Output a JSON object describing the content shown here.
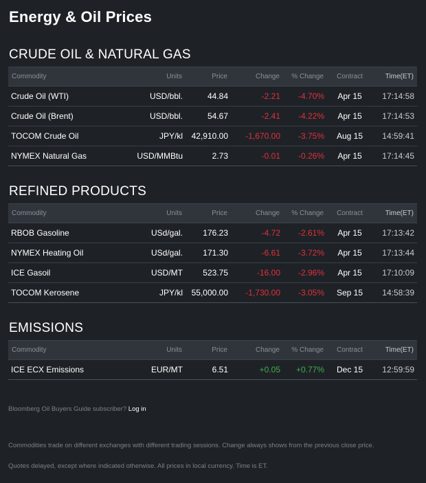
{
  "page": {
    "title": "Energy & Oil Prices"
  },
  "columns": [
    "Commodity",
    "Units",
    "Price",
    "Change",
    "% Change",
    "Contract",
    "Time(ET)"
  ],
  "colors": {
    "negative": "#e0303a",
    "positive": "#3fae49",
    "background": "#1e2227",
    "header_bg": "#30353c"
  },
  "sections": [
    {
      "title": "CRUDE OIL & NATURAL GAS",
      "rows": [
        {
          "name": "Crude Oil (WTI)",
          "units": "USD/bbl.",
          "price": "44.84",
          "change": "-2.21",
          "pct": "-4.70%",
          "contract": "Apr 15",
          "time": "17:14:58"
        },
        {
          "name": "Crude Oil (Brent)",
          "units": "USD/bbl.",
          "price": "54.67",
          "change": "-2.41",
          "pct": "-4.22%",
          "contract": "Apr 15",
          "time": "17:14:53"
        },
        {
          "name": "TOCOM Crude Oil",
          "units": "JPY/kl",
          "price": "42,910.00",
          "change": "-1,670.00",
          "pct": "-3.75%",
          "contract": "Aug 15",
          "time": "14:59:41"
        },
        {
          "name": "NYMEX Natural Gas",
          "units": "USD/MMBtu",
          "price": "2.73",
          "change": "-0.01",
          "pct": "-0.26%",
          "contract": "Apr 15",
          "time": "17:14:45"
        }
      ]
    },
    {
      "title": "REFINED PRODUCTS",
      "rows": [
        {
          "name": "RBOB Gasoline",
          "units": "USd/gal.",
          "price": "176.23",
          "change": "-4.72",
          "pct": "-2.61%",
          "contract": "Apr 15",
          "time": "17:13:42"
        },
        {
          "name": "NYMEX Heating Oil",
          "units": "USd/gal.",
          "price": "171.30",
          "change": "-6.61",
          "pct": "-3.72%",
          "contract": "Apr 15",
          "time": "17:13:44"
        },
        {
          "name": "ICE Gasoil",
          "units": "USD/MT",
          "price": "523.75",
          "change": "-16.00",
          "pct": "-2.96%",
          "contract": "Apr 15",
          "time": "17:10:09"
        },
        {
          "name": "TOCOM Kerosene",
          "units": "JPY/kl",
          "price": "55,000.00",
          "change": "-1,730.00",
          "pct": "-3.05%",
          "contract": "Sep 15",
          "time": "14:58:39"
        }
      ]
    },
    {
      "title": "EMISSIONS",
      "rows": [
        {
          "name": "ICE ECX Emissions",
          "units": "EUR/MT",
          "price": "6.51",
          "change": "+0.05",
          "pct": "+0.77%",
          "contract": "Dec 15",
          "time": "12:59:59"
        }
      ]
    }
  ],
  "footer": {
    "subscriber_text": "Bloomberg Oil Buyers Guide subscriber?",
    "login_label": "Log in",
    "note1": "Commodities trade on different exchanges with different trading sessions. Change always shows from the previous close price.",
    "note2": "Quotes delayed, except where indicated otherwise. All prices in local currency. Time is ET."
  }
}
